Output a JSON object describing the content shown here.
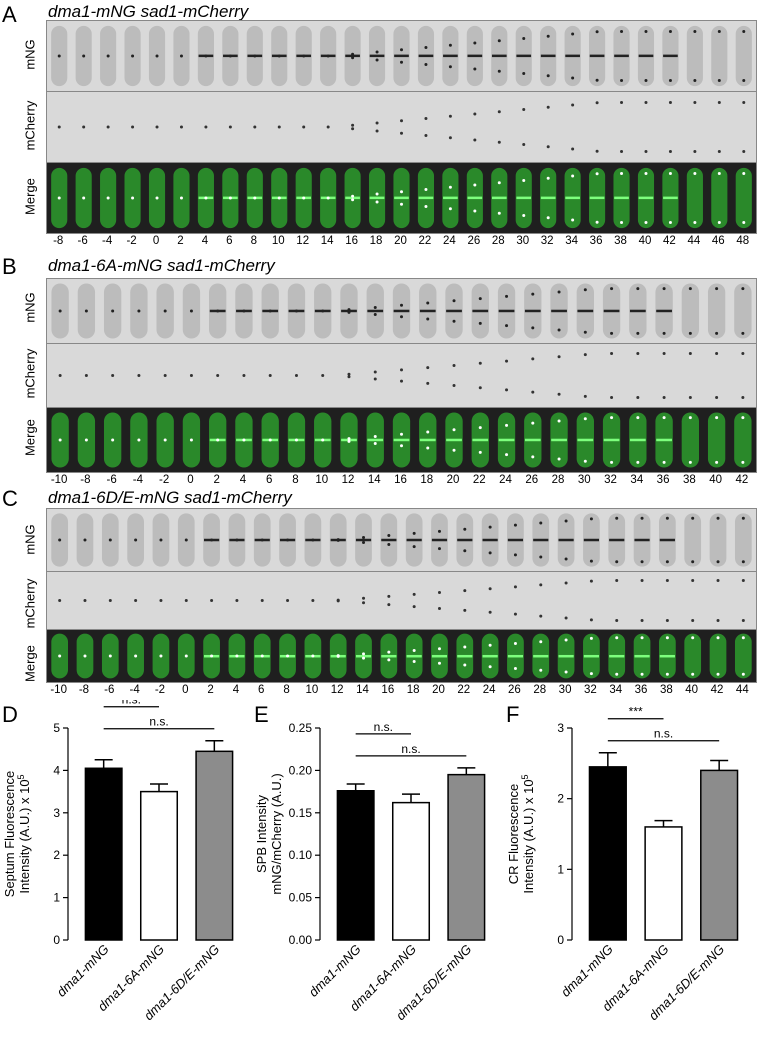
{
  "panels": [
    {
      "letter": "A",
      "title": "dma1-mNG sad1-mCherry",
      "rows": [
        "mNG",
        "mCherry",
        "Merge"
      ],
      "times": [
        "-8",
        "-6",
        "-4",
        "-2",
        "0",
        "2",
        "4",
        "6",
        "8",
        "10",
        "12",
        "14",
        "16",
        "18",
        "20",
        "22",
        "24",
        "26",
        "28",
        "30",
        "32",
        "34",
        "36",
        "38",
        "40",
        "42",
        "44",
        "46",
        "48"
      ]
    },
    {
      "letter": "B",
      "title": "dma1-6A-mNG sad1-mCherry",
      "rows": [
        "mNG",
        "mCherry",
        "Merge"
      ],
      "times": [
        "-10",
        "-8",
        "-6",
        "-4",
        "-2",
        "0",
        "2",
        "4",
        "6",
        "8",
        "10",
        "12",
        "14",
        "16",
        "18",
        "20",
        "22",
        "24",
        "26",
        "28",
        "30",
        "32",
        "34",
        "36",
        "38",
        "40",
        "42"
      ]
    },
    {
      "letter": "C",
      "title": "dma1-6D/E-mNG sad1-mCherry",
      "rows": [
        "mNG",
        "mCherry",
        "Merge"
      ],
      "times": [
        "-10",
        "-8",
        "-6",
        "-4",
        "-2",
        "0",
        "2",
        "4",
        "6",
        "8",
        "10",
        "12",
        "14",
        "16",
        "18",
        "20",
        "22",
        "24",
        "26",
        "28",
        "30",
        "32",
        "34",
        "36",
        "38",
        "40",
        "42",
        "44"
      ]
    }
  ],
  "colors": {
    "black_bar": "#000000",
    "white_bar": "#ffffff",
    "gray_bar": "#8c8c8c",
    "merge_green": "#2fae2f",
    "merge_bg": "#1f1f1f"
  },
  "chart_data": [
    {
      "letter": "D",
      "type": "bar",
      "ylabel_line1": "Septum Fluorescence",
      "ylabel_line2": "Intensity (A.U.) x 10",
      "ylabel_sup": "5",
      "categories": [
        "dma1-mNG",
        "dma1-6A-mNG",
        "dma1-6D/E-mNG"
      ],
      "values": [
        4.05,
        3.5,
        4.45
      ],
      "errors": [
        0.2,
        0.18,
        0.25
      ],
      "ylim": [
        0,
        5
      ],
      "yticks": [
        "0",
        "1",
        "2",
        "3",
        "4",
        "5"
      ],
      "ytick_values": [
        0,
        1,
        2,
        3,
        4,
        5
      ],
      "significance": [
        {
          "from": 0,
          "to": 1,
          "label": "n.s."
        },
        {
          "from": 0,
          "to": 2,
          "label": "n.s."
        }
      ]
    },
    {
      "letter": "E",
      "type": "bar",
      "ylabel_line1": "SPB Intensity",
      "ylabel_line2": "mNG/mCherry (A.U.)",
      "ylabel_sup": "",
      "categories": [
        "dma1-mNG",
        "dma1-6A-mNG",
        "dma1-6D/E-mNG"
      ],
      "values": [
        0.176,
        0.162,
        0.195
      ],
      "errors": [
        0.008,
        0.01,
        0.008
      ],
      "ylim": [
        0,
        0.25
      ],
      "yticks": [
        "0.00",
        "0.05",
        "0.10",
        "0.15",
        "0.20",
        "0.25"
      ],
      "ytick_values": [
        0,
        0.05,
        0.1,
        0.15,
        0.2,
        0.25
      ],
      "significance": [
        {
          "from": 0,
          "to": 1,
          "label": "n.s."
        },
        {
          "from": 0,
          "to": 2,
          "label": "n.s."
        }
      ]
    },
    {
      "letter": "F",
      "type": "bar",
      "ylabel_line1": "CR Fluorescence",
      "ylabel_line2": "Intensity (A.U.) x 10",
      "ylabel_sup": "5",
      "categories": [
        "dma1-mNG",
        "dma1-6A-mNG",
        "dma1-6D/E-mNG"
      ],
      "values": [
        2.45,
        1.6,
        2.4
      ],
      "errors": [
        0.2,
        0.09,
        0.14
      ],
      "ylim": [
        0,
        3
      ],
      "yticks": [
        "0",
        "1",
        "2",
        "3"
      ],
      "ytick_values": [
        0,
        1,
        2,
        3
      ],
      "significance": [
        {
          "from": 0,
          "to": 1,
          "label": "***"
        },
        {
          "from": 0,
          "to": 2,
          "label": "n.s."
        }
      ]
    }
  ]
}
